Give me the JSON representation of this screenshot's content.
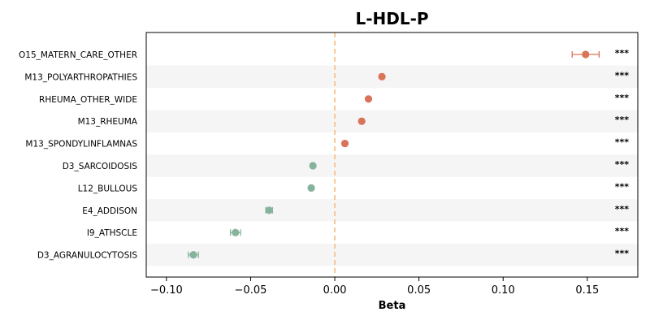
{
  "chart_data": {
    "type": "scatter",
    "title": "L-HDL-P",
    "xlabel": "Beta",
    "ylabel": "",
    "xlim": [
      -0.112,
      0.18
    ],
    "xticks": [
      -0.1,
      -0.05,
      0.0,
      0.05,
      0.1,
      0.15
    ],
    "xtick_labels": [
      "−0.10",
      "−0.05",
      "0.00",
      "0.05",
      "0.10",
      "0.15"
    ],
    "reference_line": 0.0,
    "categories": [
      "O15_MATERN_CARE_OTHER",
      "M13_POLYARTHROPATHIES",
      "RHEUMA_OTHER_WIDE",
      "M13_RHEUMA",
      "M13_SPONDYLINFLAMNAS",
      "D3_SARCOIDOSIS",
      "L12_BULLOUS",
      "E4_ADDISON",
      "I9_ATHSCLE",
      "D3_AGRANULOCYTOSIS"
    ],
    "values": [
      0.149,
      0.028,
      0.02,
      0.016,
      0.006,
      -0.013,
      -0.014,
      -0.039,
      -0.059,
      -0.084
    ],
    "ci_low": [
      0.141,
      0.027,
      0.019,
      0.015,
      0.005,
      -0.014,
      -0.015,
      -0.041,
      -0.062,
      -0.087
    ],
    "ci_high": [
      0.157,
      0.029,
      0.021,
      0.017,
      0.007,
      -0.012,
      -0.013,
      -0.037,
      -0.056,
      -0.081
    ],
    "significance": [
      "***",
      "***",
      "***",
      "***",
      "***",
      "***",
      "***",
      "***",
      "***",
      "***"
    ],
    "colors": {
      "positive": "#d9735a",
      "negative": "#86b39b",
      "reference_line": "#f5b97a",
      "row_band": "#f5f5f5"
    },
    "grid": false
  }
}
